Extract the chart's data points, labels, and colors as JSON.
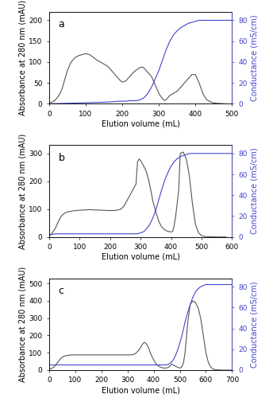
{
  "panels": [
    {
      "label": "a",
      "xlim": [
        0,
        500
      ],
      "xticks": [
        0,
        100,
        200,
        300,
        400,
        500
      ],
      "abs_ylim": [
        0,
        220
      ],
      "abs_yticks": [
        0,
        50,
        100,
        150,
        200
      ],
      "cond_ylim": [
        0,
        88
      ],
      "cond_yticks": [
        0,
        20,
        40,
        60,
        80
      ],
      "abs_color": "#555555",
      "cond_color": "#4444cc",
      "show_xlabel": false,
      "abs_curve": {
        "x": [
          0,
          5,
          10,
          15,
          20,
          25,
          30,
          35,
          40,
          50,
          60,
          70,
          80,
          90,
          100,
          110,
          120,
          130,
          140,
          150,
          160,
          165,
          170,
          175,
          180,
          185,
          190,
          195,
          200,
          210,
          220,
          230,
          240,
          245,
          250,
          255,
          260,
          265,
          270,
          275,
          280,
          285,
          290,
          295,
          300,
          305,
          310,
          315,
          320,
          325,
          330,
          340,
          350,
          360,
          370,
          380,
          390,
          400,
          410,
          420,
          430,
          440,
          450,
          460,
          470,
          480
        ],
        "y": [
          2,
          3,
          5,
          8,
          12,
          18,
          25,
          35,
          50,
          80,
          100,
          110,
          115,
          118,
          120,
          118,
          112,
          105,
          100,
          95,
          90,
          85,
          80,
          75,
          70,
          65,
          60,
          55,
          52,
          55,
          65,
          75,
          82,
          85,
          87,
          88,
          85,
          80,
          75,
          70,
          65,
          55,
          45,
          35,
          25,
          18,
          12,
          8,
          10,
          15,
          20,
          25,
          30,
          40,
          50,
          60,
          70,
          70,
          50,
          25,
          10,
          5,
          2,
          1,
          0.5,
          0
        ]
      },
      "cond_curve": {
        "x": [
          0,
          50,
          100,
          150,
          175,
          190,
          200,
          210,
          220,
          230,
          240,
          250,
          260,
          270,
          280,
          290,
          300,
          310,
          320,
          330,
          340,
          350,
          360,
          370,
          380,
          390,
          400,
          410,
          420,
          430,
          440,
          450,
          460,
          470,
          480,
          490,
          500
        ],
        "y": [
          0,
          0.5,
          1,
          1.5,
          2,
          2.5,
          2.5,
          2.5,
          3,
          3,
          3,
          4,
          6,
          10,
          16,
          24,
          32,
          42,
          52,
          60,
          66,
          70,
          73,
          75,
          77,
          78,
          79,
          80,
          80,
          80,
          80,
          80,
          80,
          80,
          80,
          80,
          80
        ]
      }
    },
    {
      "label": "b",
      "xlim": [
        0,
        600
      ],
      "xticks": [
        0,
        100,
        200,
        300,
        400,
        500,
        600
      ],
      "abs_ylim": [
        0,
        330
      ],
      "abs_yticks": [
        0,
        100,
        200,
        300
      ],
      "cond_ylim": [
        0,
        88
      ],
      "cond_yticks": [
        0,
        20,
        40,
        60,
        80
      ],
      "abs_color": "#555555",
      "cond_color": "#4444cc",
      "show_xlabel": false,
      "abs_curve": {
        "x": [
          0,
          5,
          10,
          20,
          30,
          40,
          50,
          60,
          70,
          80,
          90,
          100,
          110,
          120,
          130,
          140,
          150,
          160,
          170,
          180,
          190,
          200,
          210,
          220,
          230,
          235,
          240,
          245,
          250,
          255,
          260,
          265,
          270,
          275,
          280,
          285,
          290,
          295,
          300,
          305,
          310,
          315,
          320,
          325,
          330,
          335,
          340,
          350,
          360,
          370,
          380,
          390,
          400,
          405,
          410,
          415,
          420,
          425,
          430,
          440,
          450,
          460,
          470,
          480,
          490,
          500,
          510,
          520,
          530,
          540,
          550,
          560,
          570,
          580
        ],
        "y": [
          5,
          8,
          15,
          30,
          55,
          75,
          85,
          90,
          92,
          94,
          95,
          96,
          97,
          97,
          98,
          98,
          97,
          97,
          96,
          96,
          95,
          95,
          95,
          96,
          98,
          100,
          105,
          110,
          120,
          130,
          140,
          150,
          160,
          170,
          180,
          190,
          270,
          280,
          275,
          265,
          255,
          245,
          230,
          210,
          185,
          160,
          130,
          90,
          55,
          35,
          25,
          20,
          18,
          20,
          40,
          75,
          120,
          170,
          300,
          305,
          280,
          220,
          120,
          45,
          15,
          5,
          2,
          1,
          0.5,
          0.3,
          0.2,
          0.1,
          0,
          0
        ]
      },
      "cond_curve": {
        "x": [
          0,
          20,
          40,
          60,
          80,
          100,
          150,
          200,
          230,
          250,
          260,
          270,
          280,
          290,
          300,
          310,
          320,
          330,
          340,
          350,
          360,
          370,
          380,
          390,
          400,
          410,
          420,
          430,
          440,
          450,
          460,
          470,
          480,
          490,
          500,
          510,
          520,
          530,
          540,
          550,
          560,
          570,
          580,
          590,
          600
        ],
        "y": [
          2,
          3,
          3,
          3,
          3,
          3,
          3,
          3,
          3,
          3,
          3,
          3,
          3,
          3,
          4,
          5,
          8,
          12,
          18,
          26,
          36,
          46,
          55,
          62,
          68,
          72,
          75,
          77,
          78,
          79,
          80,
          80,
          80,
          80,
          80,
          80,
          80,
          80,
          80,
          80,
          80,
          80,
          80,
          80,
          80
        ]
      }
    },
    {
      "label": "c",
      "xlim": [
        0,
        700
      ],
      "xticks": [
        0,
        100,
        200,
        300,
        400,
        500,
        600,
        700
      ],
      "abs_ylim": [
        0,
        530
      ],
      "abs_yticks": [
        0,
        100,
        200,
        300,
        400,
        500
      ],
      "cond_ylim": [
        0,
        88
      ],
      "cond_yticks": [
        0,
        20,
        40,
        60,
        80
      ],
      "abs_color": "#555555",
      "cond_color": "#4444cc",
      "show_xlabel": true,
      "abs_curve": {
        "x": [
          0,
          10,
          20,
          30,
          40,
          50,
          60,
          70,
          80,
          90,
          100,
          110,
          120,
          130,
          140,
          150,
          160,
          170,
          180,
          190,
          200,
          210,
          220,
          230,
          240,
          250,
          260,
          270,
          280,
          290,
          300,
          310,
          320,
          330,
          340,
          350,
          355,
          360,
          365,
          370,
          375,
          380,
          385,
          390,
          395,
          400,
          405,
          410,
          415,
          420,
          425,
          430,
          435,
          440,
          445,
          450,
          455,
          460,
          465,
          470,
          475,
          480,
          490,
          500,
          505,
          510,
          515,
          520,
          525,
          530,
          540,
          550,
          560,
          570,
          580,
          590,
          600,
          610,
          620,
          630,
          640,
          650,
          660,
          670,
          680,
          690,
          700
        ],
        "y": [
          5,
          10,
          20,
          40,
          60,
          75,
          82,
          85,
          87,
          88,
          88,
          88,
          88,
          88,
          88,
          88,
          88,
          88,
          88,
          88,
          88,
          88,
          88,
          88,
          88,
          88,
          88,
          88,
          88,
          88,
          88,
          88,
          90,
          95,
          110,
          130,
          145,
          155,
          160,
          155,
          145,
          130,
          110,
          90,
          75,
          60,
          45,
          35,
          28,
          22,
          18,
          15,
          13,
          12,
          12,
          13,
          15,
          20,
          28,
          35,
          30,
          25,
          18,
          12,
          15,
          25,
          50,
          100,
          180,
          270,
          380,
          400,
          390,
          360,
          300,
          200,
          100,
          40,
          15,
          5,
          2,
          1,
          0.5,
          0.2,
          0.1,
          0,
          0
        ]
      },
      "cond_curve": {
        "x": [
          0,
          20,
          40,
          60,
          80,
          100,
          150,
          200,
          300,
          350,
          380,
          400,
          420,
          440,
          450,
          460,
          470,
          480,
          490,
          500,
          505,
          510,
          520,
          530,
          540,
          550,
          560,
          570,
          580,
          590,
          600,
          610,
          620,
          630,
          640,
          650,
          660,
          670,
          680,
          690,
          700
        ],
        "y": [
          5,
          5,
          5,
          5,
          5,
          5,
          5,
          5,
          5,
          5,
          5,
          5,
          5,
          5,
          5,
          6,
          8,
          12,
          18,
          26,
          30,
          35,
          46,
          55,
          63,
          70,
          75,
          78,
          80,
          81,
          82,
          82,
          82,
          82,
          82,
          82,
          82,
          82,
          82,
          82,
          82
        ]
      }
    }
  ],
  "ylabel_left": "Absorbance at 280 nm (mAU)",
  "ylabel_right": "Conductance (mS/cm)",
  "xlabel": "Elution volume (mL)",
  "label_fontsize": 7,
  "tick_fontsize": 6.5,
  "axes_color": "#000000"
}
